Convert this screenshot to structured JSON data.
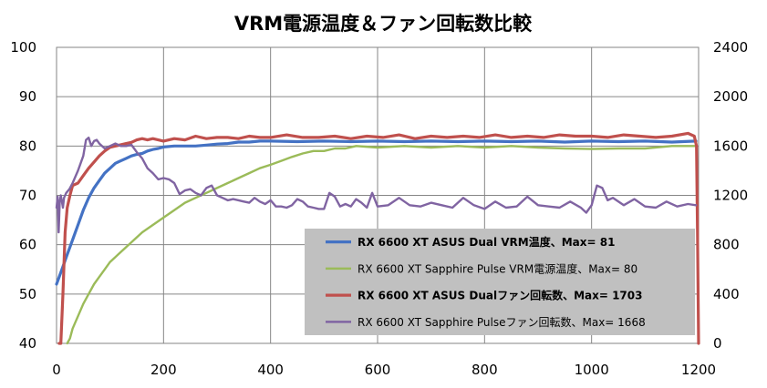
{
  "chart_data": {
    "type": "line",
    "title": "VRM電源温度＆ファン回転数比較",
    "x_axis": {
      "min": 0,
      "max": 1200,
      "step": 200,
      "ticks": [
        "0",
        "200",
        "400",
        "600",
        "800",
        "1000",
        "1200"
      ]
    },
    "y_left": {
      "min": 40,
      "max": 100,
      "step": 10,
      "ticks": [
        "40",
        "50",
        "60",
        "70",
        "80",
        "90",
        "100"
      ]
    },
    "y_right": {
      "min": 0,
      "max": 2400,
      "step": 400,
      "ticks": [
        "0",
        "400",
        "800",
        "1200",
        "1600",
        "2000",
        "2400"
      ]
    },
    "grid": true,
    "legend_position": "bottom-right",
    "series": [
      {
        "name": "RX 6600 XT ASUS Dual VRM温度、Max= 81",
        "axis": "left",
        "color": "#4472c4",
        "bold": true,
        "points": [
          [
            0,
            52
          ],
          [
            10,
            55
          ],
          [
            20,
            58
          ],
          [
            30,
            61
          ],
          [
            40,
            64
          ],
          [
            50,
            67
          ],
          [
            60,
            69.5
          ],
          [
            70,
            71.5
          ],
          [
            80,
            73
          ],
          [
            90,
            74.5
          ],
          [
            100,
            75.5
          ],
          [
            110,
            76.5
          ],
          [
            120,
            77
          ],
          [
            130,
            77.5
          ],
          [
            140,
            78
          ],
          [
            150,
            78.3
          ],
          [
            160,
            78.5
          ],
          [
            170,
            79
          ],
          [
            180,
            79.3
          ],
          [
            190,
            79.5
          ],
          [
            200,
            79.8
          ],
          [
            220,
            80
          ],
          [
            240,
            80
          ],
          [
            260,
            80
          ],
          [
            280,
            80.2
          ],
          [
            300,
            80.4
          ],
          [
            320,
            80.5
          ],
          [
            340,
            80.8
          ],
          [
            360,
            80.8
          ],
          [
            380,
            81
          ],
          [
            400,
            81
          ],
          [
            450,
            80.9
          ],
          [
            500,
            81
          ],
          [
            550,
            80.9
          ],
          [
            600,
            81
          ],
          [
            650,
            80.9
          ],
          [
            700,
            81
          ],
          [
            750,
            80.9
          ],
          [
            800,
            81
          ],
          [
            850,
            80.9
          ],
          [
            900,
            81
          ],
          [
            950,
            80.8
          ],
          [
            1000,
            81
          ],
          [
            1050,
            80.9
          ],
          [
            1100,
            81
          ],
          [
            1150,
            80.8
          ],
          [
            1195,
            81
          ]
        ]
      },
      {
        "name": "RX 6600 XT Sapphire Pulse VRM電源温度、Max= 80",
        "axis": "left",
        "color": "#9bbb59",
        "bold": false,
        "points": [
          [
            20,
            40
          ],
          [
            25,
            41
          ],
          [
            30,
            43
          ],
          [
            40,
            45.5
          ],
          [
            50,
            48
          ],
          [
            60,
            50
          ],
          [
            70,
            52
          ],
          [
            80,
            53.5
          ],
          [
            90,
            55
          ],
          [
            100,
            56.5
          ],
          [
            120,
            58.5
          ],
          [
            140,
            60.5
          ],
          [
            160,
            62.5
          ],
          [
            180,
            64
          ],
          [
            200,
            65.5
          ],
          [
            220,
            67
          ],
          [
            240,
            68.5
          ],
          [
            260,
            69.5
          ],
          [
            280,
            70.5
          ],
          [
            300,
            71.5
          ],
          [
            320,
            72.5
          ],
          [
            340,
            73.5
          ],
          [
            360,
            74.5
          ],
          [
            380,
            75.5
          ],
          [
            400,
            76.2
          ],
          [
            420,
            77
          ],
          [
            440,
            77.8
          ],
          [
            460,
            78.5
          ],
          [
            480,
            79
          ],
          [
            500,
            79
          ],
          [
            520,
            79.5
          ],
          [
            540,
            79.5
          ],
          [
            560,
            80
          ],
          [
            600,
            79.7
          ],
          [
            650,
            80
          ],
          [
            700,
            79.7
          ],
          [
            750,
            80
          ],
          [
            800,
            79.7
          ],
          [
            850,
            80
          ],
          [
            900,
            79.7
          ],
          [
            950,
            79.5
          ],
          [
            1000,
            79.4
          ],
          [
            1050,
            79.5
          ],
          [
            1100,
            79.5
          ],
          [
            1150,
            80
          ],
          [
            1195,
            80
          ]
        ]
      },
      {
        "name": "RX 6600 XT ASUS Dualファン回転数、Max= 1703",
        "axis": "right",
        "color": "#c0504d",
        "bold": true,
        "points": [
          [
            5,
            0
          ],
          [
            8,
            0
          ],
          [
            12,
            400
          ],
          [
            16,
            900
          ],
          [
            20,
            1100
          ],
          [
            25,
            1200
          ],
          [
            30,
            1280
          ],
          [
            40,
            1300
          ],
          [
            50,
            1360
          ],
          [
            60,
            1420
          ],
          [
            70,
            1470
          ],
          [
            80,
            1520
          ],
          [
            90,
            1560
          ],
          [
            100,
            1590
          ],
          [
            110,
            1600
          ],
          [
            120,
            1610
          ],
          [
            130,
            1620
          ],
          [
            140,
            1630
          ],
          [
            150,
            1650
          ],
          [
            160,
            1660
          ],
          [
            170,
            1650
          ],
          [
            180,
            1660
          ],
          [
            200,
            1640
          ],
          [
            220,
            1660
          ],
          [
            240,
            1650
          ],
          [
            260,
            1680
          ],
          [
            280,
            1660
          ],
          [
            300,
            1670
          ],
          [
            320,
            1670
          ],
          [
            340,
            1660
          ],
          [
            360,
            1680
          ],
          [
            380,
            1670
          ],
          [
            400,
            1670
          ],
          [
            430,
            1690
          ],
          [
            460,
            1670
          ],
          [
            490,
            1670
          ],
          [
            520,
            1680
          ],
          [
            550,
            1660
          ],
          [
            580,
            1680
          ],
          [
            610,
            1670
          ],
          [
            640,
            1690
          ],
          [
            670,
            1660
          ],
          [
            700,
            1680
          ],
          [
            730,
            1670
          ],
          [
            760,
            1680
          ],
          [
            790,
            1670
          ],
          [
            820,
            1690
          ],
          [
            850,
            1670
          ],
          [
            880,
            1680
          ],
          [
            910,
            1670
          ],
          [
            940,
            1690
          ],
          [
            970,
            1680
          ],
          [
            1000,
            1680
          ],
          [
            1030,
            1670
          ],
          [
            1060,
            1690
          ],
          [
            1090,
            1680
          ],
          [
            1120,
            1670
          ],
          [
            1150,
            1680
          ],
          [
            1180,
            1703
          ],
          [
            1192,
            1680
          ],
          [
            1196,
            1600
          ],
          [
            1198,
            900
          ],
          [
            1200,
            0
          ]
        ]
      },
      {
        "name": "RX 6600 XT Sapphire Pulseファン回転数、Max= 1668",
        "axis": "right",
        "color": "#8064a2",
        "bold": false,
        "points": [
          [
            0,
            1100
          ],
          [
            2,
            1190
          ],
          [
            4,
            900
          ],
          [
            6,
            1150
          ],
          [
            8,
            1200
          ],
          [
            10,
            1150
          ],
          [
            12,
            1100
          ],
          [
            14,
            1180
          ],
          [
            18,
            1220
          ],
          [
            24,
            1250
          ],
          [
            30,
            1300
          ],
          [
            40,
            1400
          ],
          [
            50,
            1520
          ],
          [
            55,
            1650
          ],
          [
            60,
            1668
          ],
          [
            65,
            1600
          ],
          [
            70,
            1640
          ],
          [
            75,
            1650
          ],
          [
            80,
            1620
          ],
          [
            90,
            1580
          ],
          [
            100,
            1600
          ],
          [
            110,
            1620
          ],
          [
            120,
            1600
          ],
          [
            130,
            1600
          ],
          [
            140,
            1610
          ],
          [
            150,
            1550
          ],
          [
            160,
            1500
          ],
          [
            170,
            1420
          ],
          [
            180,
            1380
          ],
          [
            190,
            1330
          ],
          [
            200,
            1340
          ],
          [
            210,
            1330
          ],
          [
            220,
            1300
          ],
          [
            230,
            1210
          ],
          [
            240,
            1240
          ],
          [
            250,
            1250
          ],
          [
            260,
            1220
          ],
          [
            270,
            1200
          ],
          [
            280,
            1260
          ],
          [
            290,
            1280
          ],
          [
            300,
            1200
          ],
          [
            310,
            1180
          ],
          [
            320,
            1160
          ],
          [
            330,
            1170
          ],
          [
            340,
            1160
          ],
          [
            350,
            1150
          ],
          [
            360,
            1140
          ],
          [
            370,
            1180
          ],
          [
            380,
            1150
          ],
          [
            390,
            1130
          ],
          [
            400,
            1160
          ],
          [
            410,
            1110
          ],
          [
            420,
            1110
          ],
          [
            430,
            1100
          ],
          [
            440,
            1120
          ],
          [
            450,
            1170
          ],
          [
            460,
            1150
          ],
          [
            470,
            1110
          ],
          [
            480,
            1100
          ],
          [
            490,
            1090
          ],
          [
            500,
            1090
          ],
          [
            510,
            1220
          ],
          [
            520,
            1190
          ],
          [
            530,
            1110
          ],
          [
            540,
            1130
          ],
          [
            550,
            1110
          ],
          [
            560,
            1170
          ],
          [
            570,
            1140
          ],
          [
            580,
            1100
          ],
          [
            590,
            1220
          ],
          [
            600,
            1110
          ],
          [
            620,
            1120
          ],
          [
            640,
            1180
          ],
          [
            660,
            1120
          ],
          [
            680,
            1110
          ],
          [
            700,
            1140
          ],
          [
            720,
            1120
          ],
          [
            740,
            1100
          ],
          [
            760,
            1180
          ],
          [
            780,
            1120
          ],
          [
            800,
            1090
          ],
          [
            820,
            1150
          ],
          [
            840,
            1100
          ],
          [
            860,
            1110
          ],
          [
            880,
            1190
          ],
          [
            900,
            1120
          ],
          [
            920,
            1110
          ],
          [
            940,
            1100
          ],
          [
            960,
            1150
          ],
          [
            980,
            1100
          ],
          [
            990,
            1060
          ],
          [
            1000,
            1120
          ],
          [
            1010,
            1280
          ],
          [
            1020,
            1260
          ],
          [
            1030,
            1160
          ],
          [
            1040,
            1180
          ],
          [
            1060,
            1120
          ],
          [
            1080,
            1170
          ],
          [
            1100,
            1110
          ],
          [
            1120,
            1100
          ],
          [
            1140,
            1150
          ],
          [
            1160,
            1110
          ],
          [
            1180,
            1130
          ],
          [
            1195,
            1120
          ]
        ]
      }
    ]
  }
}
